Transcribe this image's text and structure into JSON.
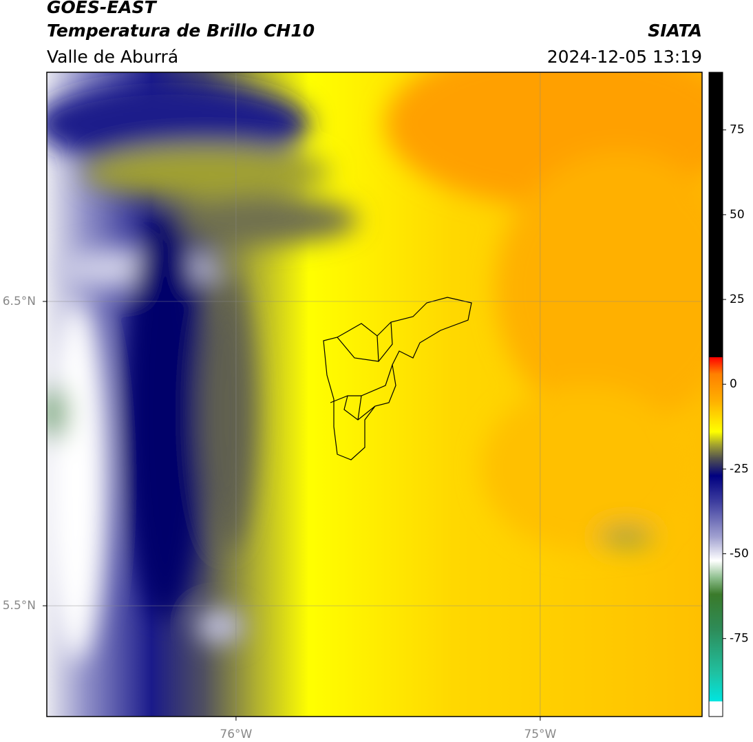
{
  "chart_data": {
    "type": "map",
    "title": "GOES-EAST",
    "subtitle": "Temperatura de Brillo CH10",
    "region": "Valle de Aburrá",
    "source": "SIATA",
    "timestamp": "2024-12-05 13:19",
    "xlim": [
      -76.622,
      -74.468
    ],
    "ylim": [
      5.136,
      7.253
    ],
    "xticks": [
      {
        "value": -76,
        "label": "76°W"
      },
      {
        "value": -75,
        "label": "75°W"
      }
    ],
    "yticks": [
      {
        "value": 6.5,
        "label": "6.5°N"
      },
      {
        "value": 5.5,
        "label": "5.5°N"
      }
    ],
    "grid": true,
    "colorbar": {
      "lim": [
        -98,
        92
      ],
      "ticks": [
        75,
        50,
        25,
        0,
        -25,
        -50,
        -75
      ],
      "stops": [
        {
          "value": -98,
          "color": "#ffffff"
        },
        {
          "value": -93.5,
          "color": "#ffffff"
        },
        {
          "value": -93.5,
          "color": "#00e5e0"
        },
        {
          "value": -85,
          "color": "#20c0a0"
        },
        {
          "value": -72,
          "color": "#2e8b57"
        },
        {
          "value": -62,
          "color": "#3a7a2a"
        },
        {
          "value": -57,
          "color": "#90c090"
        },
        {
          "value": -52,
          "color": "#ffffff"
        },
        {
          "value": -45,
          "color": "#a0a0d0"
        },
        {
          "value": -35,
          "color": "#4040a0"
        },
        {
          "value": -27,
          "color": "#000080"
        },
        {
          "value": -22,
          "color": "#505050"
        },
        {
          "value": -18,
          "color": "#a0a030"
        },
        {
          "value": -14,
          "color": "#ffff00"
        },
        {
          "value": -5,
          "color": "#ffb000"
        },
        {
          "value": 3,
          "color": "#ff8000"
        },
        {
          "value": 8,
          "color": "#ff0000"
        },
        {
          "value": 8,
          "color": "#000000"
        },
        {
          "value": 92,
          "color": "#000000"
        }
      ]
    }
  }
}
